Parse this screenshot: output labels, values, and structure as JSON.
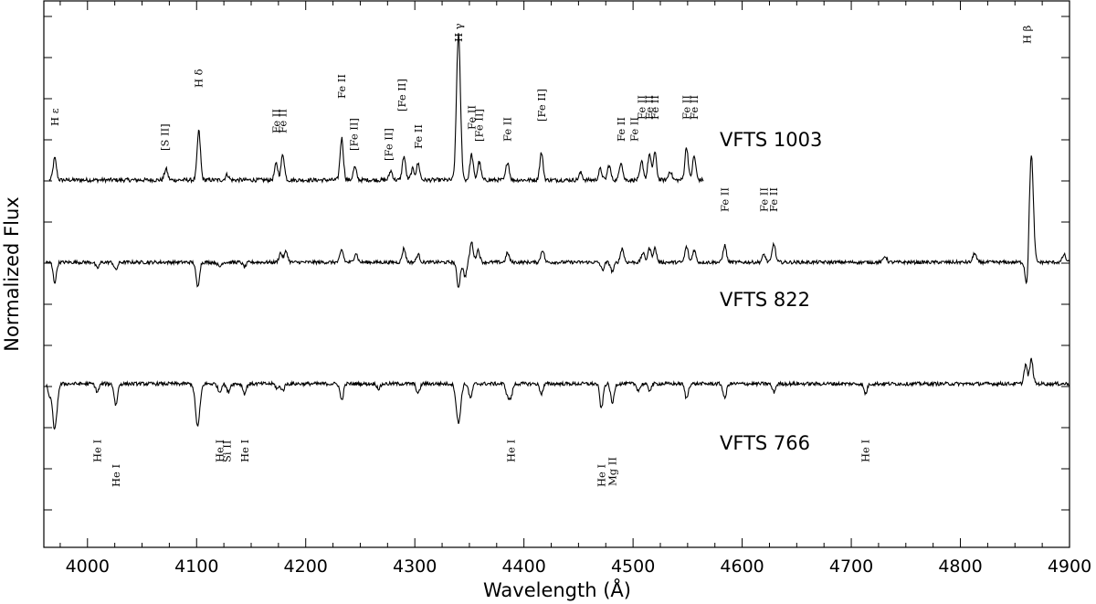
{
  "chart_data": {
    "type": "line",
    "xlabel": "Wavelength (Å)",
    "ylabel": "Normalized Flux",
    "xlim": [
      3960,
      4900
    ],
    "x_ticks": [
      4000,
      4100,
      4200,
      4300,
      4400,
      4500,
      4600,
      4700,
      4800,
      4900
    ],
    "x_tick_labels": [
      "4000",
      "4100",
      "4200",
      "4300",
      "4400",
      "4500",
      "4600",
      "4700",
      "4800",
      "4900"
    ],
    "grid": false,
    "series": [
      {
        "name": "VFTS 1003",
        "x_range": [
          3965,
          4565
        ],
        "emission": [
          [
            3970,
            1.2
          ],
          [
            4072,
            0.6
          ],
          [
            4102,
            2.7
          ],
          [
            4128,
            0.3
          ],
          [
            4173,
            0.9
          ],
          [
            4179,
            1.4
          ],
          [
            4233,
            2.3
          ],
          [
            4245,
            0.7
          ],
          [
            4278,
            0.5
          ],
          [
            4290,
            1.3
          ],
          [
            4298,
            0.6
          ],
          [
            4303,
            0.9
          ],
          [
            4340,
            8.0
          ],
          [
            4352,
            1.4
          ],
          [
            4359,
            1.0
          ],
          [
            4385,
            1.0
          ],
          [
            4416,
            1.5
          ],
          [
            4452,
            0.4
          ],
          [
            4470,
            0.6
          ],
          [
            4478,
            0.8
          ],
          [
            4489,
            1.0
          ],
          [
            4508,
            1.0
          ],
          [
            4515,
            1.4
          ],
          [
            4520,
            1.5
          ],
          [
            4534,
            0.5
          ],
          [
            4549,
            1.8
          ],
          [
            4556,
            1.3
          ]
        ],
        "absorption": []
      },
      {
        "name": "VFTS 822",
        "x_range": [
          3962,
          4900
        ],
        "emission": [
          [
            4177,
            0.6
          ],
          [
            4182,
            0.7
          ],
          [
            4233,
            0.8
          ],
          [
            4246,
            0.6
          ],
          [
            4290,
            0.9
          ],
          [
            4303,
            0.5
          ],
          [
            4352,
            1.3
          ],
          [
            4358,
            0.8
          ],
          [
            4385,
            0.6
          ],
          [
            4417,
            0.8
          ],
          [
            4490,
            0.9
          ],
          [
            4509,
            0.6
          ],
          [
            4515,
            0.9
          ],
          [
            4520,
            0.9
          ],
          [
            4549,
            1.0
          ],
          [
            4556,
            0.8
          ],
          [
            4584,
            1.1
          ],
          [
            4620,
            0.5
          ],
          [
            4629,
            1.2
          ],
          [
            4731,
            0.4
          ],
          [
            4813,
            0.6
          ],
          [
            4865,
            7.0
          ],
          [
            4895,
            0.5
          ]
        ],
        "absorption": [
          [
            3970,
            1.3
          ],
          [
            4009,
            0.4
          ],
          [
            4026,
            0.5
          ],
          [
            4101,
            1.6
          ],
          [
            4121,
            0.3
          ],
          [
            4144,
            0.3
          ],
          [
            4340,
            1.6
          ],
          [
            4346,
            0.9
          ],
          [
            4472,
            0.5
          ],
          [
            4481,
            0.6
          ],
          [
            4861,
            1.7
          ]
        ]
      },
      {
        "name": "VFTS 766",
        "x_range": [
          3962,
          4900
        ],
        "emission": [
          [
            4860,
            1.4
          ],
          [
            4865,
            1.5
          ]
        ],
        "absorption": [
          [
            3965,
            0.6
          ],
          [
            3970,
            2.8
          ],
          [
            4009,
            0.5
          ],
          [
            4026,
            1.3
          ],
          [
            4101,
            2.6
          ],
          [
            4121,
            0.5
          ],
          [
            4129,
            0.5
          ],
          [
            4144,
            0.6
          ],
          [
            4174,
            0.3
          ],
          [
            4179,
            0.4
          ],
          [
            4233,
            1.0
          ],
          [
            4267,
            0.3
          ],
          [
            4303,
            0.6
          ],
          [
            4340,
            2.4
          ],
          [
            4351,
            0.9
          ],
          [
            4385,
            0.7
          ],
          [
            4388,
            0.8
          ],
          [
            4416,
            0.6
          ],
          [
            4471,
            1.5
          ],
          [
            4481,
            1.2
          ],
          [
            4505,
            0.4
          ],
          [
            4515,
            0.4
          ],
          [
            4549,
            0.9
          ],
          [
            4584,
            0.9
          ],
          [
            4629,
            0.5
          ],
          [
            4713,
            0.6
          ],
          [
            4861,
            0.3
          ]
        ]
      }
    ],
    "series_labels": [
      "VFTS 1003",
      "VFTS 822",
      "VFTS 766"
    ],
    "annotations": [
      {
        "text": "H ε",
        "x": 3970,
        "series": 0
      },
      {
        "text": "[S II]",
        "x": 4071,
        "series": 0
      },
      {
        "text": "H δ",
        "x": 4102,
        "series": 0
      },
      {
        "text": "Fe II",
        "x": 4173,
        "series": 0
      },
      {
        "text": "Fe II",
        "x": 4179,
        "series": 0
      },
      {
        "text": "Fe II",
        "x": 4233,
        "series": 0
      },
      {
        "text": "[Fe II]",
        "x": 4244,
        "series": 0
      },
      {
        "text": "[Fe II]",
        "x": 4276,
        "series": 0
      },
      {
        "text": "[Fe II]",
        "x": 4288,
        "series": 0
      },
      {
        "text": "Fe II",
        "x": 4303,
        "series": 0
      },
      {
        "text": "H γ",
        "x": 4340,
        "series": 0
      },
      {
        "text": "Fe II",
        "x": 4352,
        "series": 0
      },
      {
        "text": "[Fe II]",
        "x": 4359,
        "series": 0
      },
      {
        "text": "Fe II",
        "x": 4385,
        "series": 0
      },
      {
        "text": "[Fe II]",
        "x": 4416,
        "series": 0
      },
      {
        "text": "Fe II",
        "x": 4489,
        "series": 0
      },
      {
        "text": "Fe II",
        "x": 4491,
        "series": 0
      },
      {
        "text": "Fe II",
        "x": 4508,
        "series": 0
      },
      {
        "text": "Fe II",
        "x": 4515,
        "series": 0
      },
      {
        "text": "Fe II",
        "x": 4520,
        "series": 0
      },
      {
        "text": "Fe II",
        "x": 4549,
        "series": 0
      },
      {
        "text": "Fe II",
        "x": 4556,
        "series": 0
      },
      {
        "text": "Fe II",
        "x": 4584,
        "series": 1
      },
      {
        "text": "Fe II",
        "x": 4620,
        "series": 1
      },
      {
        "text": "Fe II",
        "x": 4629,
        "series": 1
      },
      {
        "text": "H β",
        "x": 4861,
        "series": 0
      },
      {
        "text": "He I",
        "x": 4009,
        "series": 2
      },
      {
        "text": "He I",
        "x": 4026,
        "series": 2
      },
      {
        "text": "He I",
        "x": 4121,
        "series": 2
      },
      {
        "text": "Si II",
        "x": 4128,
        "series": 2
      },
      {
        "text": "He I",
        "x": 4144,
        "series": 2
      },
      {
        "text": "He I",
        "x": 4388,
        "series": 2
      },
      {
        "text": "He I",
        "x": 4471,
        "series": 2
      },
      {
        "text": "Mg II",
        "x": 4481,
        "series": 2
      },
      {
        "text": "He I",
        "x": 4713,
        "series": 2
      }
    ]
  }
}
